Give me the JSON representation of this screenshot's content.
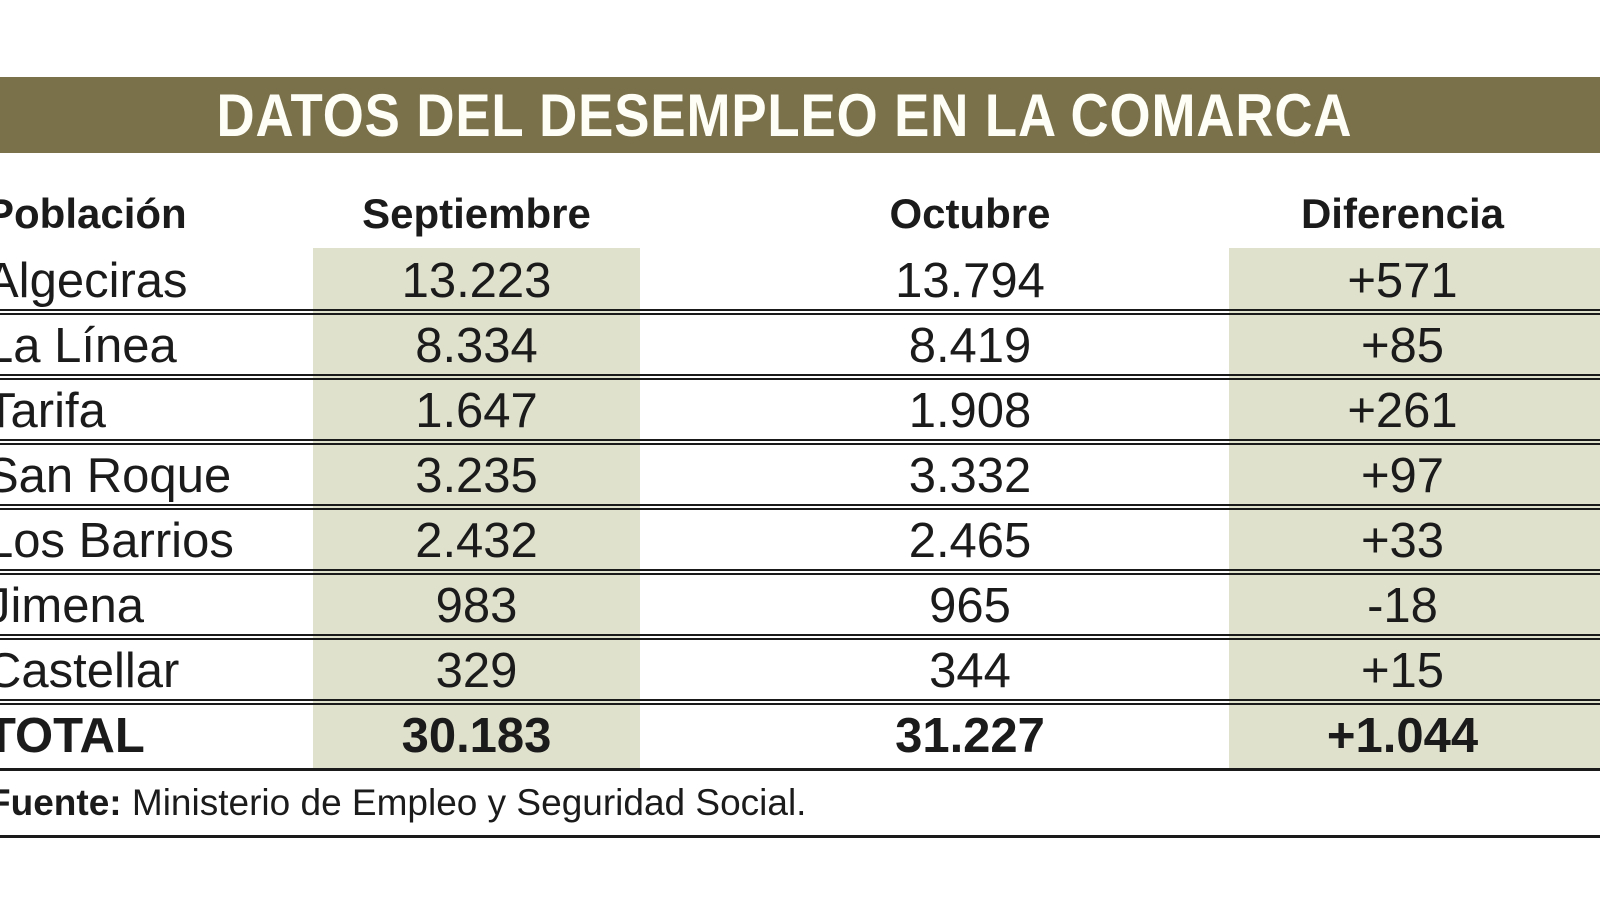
{
  "title": "DATOS DEL DESEMPLEO EN LA COMARCA",
  "colors": {
    "title_bar": "#7a714b",
    "band": "#dfe1cd",
    "line": "#1a1a1a",
    "text": "#1b1b1b"
  },
  "table": {
    "columns": {
      "poblacion": "Población",
      "septiembre": "Septiembre",
      "octubre": "Octubre",
      "diferencia": "Diferencia"
    },
    "rows": [
      {
        "poblacion": "Algeciras",
        "septiembre": "13.223",
        "octubre": "13.794",
        "diferencia": "+571"
      },
      {
        "poblacion": "La Línea",
        "septiembre": "8.334",
        "octubre": "8.419",
        "diferencia": "+85"
      },
      {
        "poblacion": "Tarifa",
        "septiembre": "1.647",
        "octubre": "1.908",
        "diferencia": "+261"
      },
      {
        "poblacion": "San Roque",
        "septiembre": "3.235",
        "octubre": "3.332",
        "diferencia": "+97"
      },
      {
        "poblacion": "Los Barrios",
        "septiembre": "2.432",
        "octubre": "2.465",
        "diferencia": "+33"
      },
      {
        "poblacion": "Jimena",
        "septiembre": "983",
        "octubre": "965",
        "diferencia": "-18"
      },
      {
        "poblacion": "Castellar",
        "septiembre": "329",
        "octubre": "344",
        "diferencia": "+15"
      }
    ],
    "total": {
      "poblacion": "TOTAL",
      "septiembre": "30.183",
      "octubre": "31.227",
      "diferencia": "+1.044"
    }
  },
  "source": {
    "label": "Fuente:",
    "text": " Ministerio de Empleo y Seguridad Social."
  },
  "chart_data": {
    "type": "table",
    "title": "DATOS DEL DESEMPLEO EN LA COMARCA",
    "columns": [
      "Población",
      "Septiembre",
      "Octubre",
      "Diferencia"
    ],
    "rows": [
      [
        "Algeciras",
        13223,
        13794,
        571
      ],
      [
        "La Línea",
        8334,
        8419,
        85
      ],
      [
        "Tarifa",
        1647,
        1908,
        261
      ],
      [
        "San Roque",
        3235,
        3332,
        97
      ],
      [
        "Los Barrios",
        2432,
        2465,
        33
      ],
      [
        "Jimena",
        983,
        965,
        -18
      ],
      [
        "Castellar",
        329,
        344,
        15
      ]
    ],
    "total_row": [
      "TOTAL",
      30183,
      31227,
      1044
    ],
    "source": "Fuente: Ministerio de Empleo y Seguridad Social.",
    "layout_hints": "Septiembre and Diferencia columns have pale sage shaded background bands; olive-brown title bar; double-rule separators between rows"
  }
}
